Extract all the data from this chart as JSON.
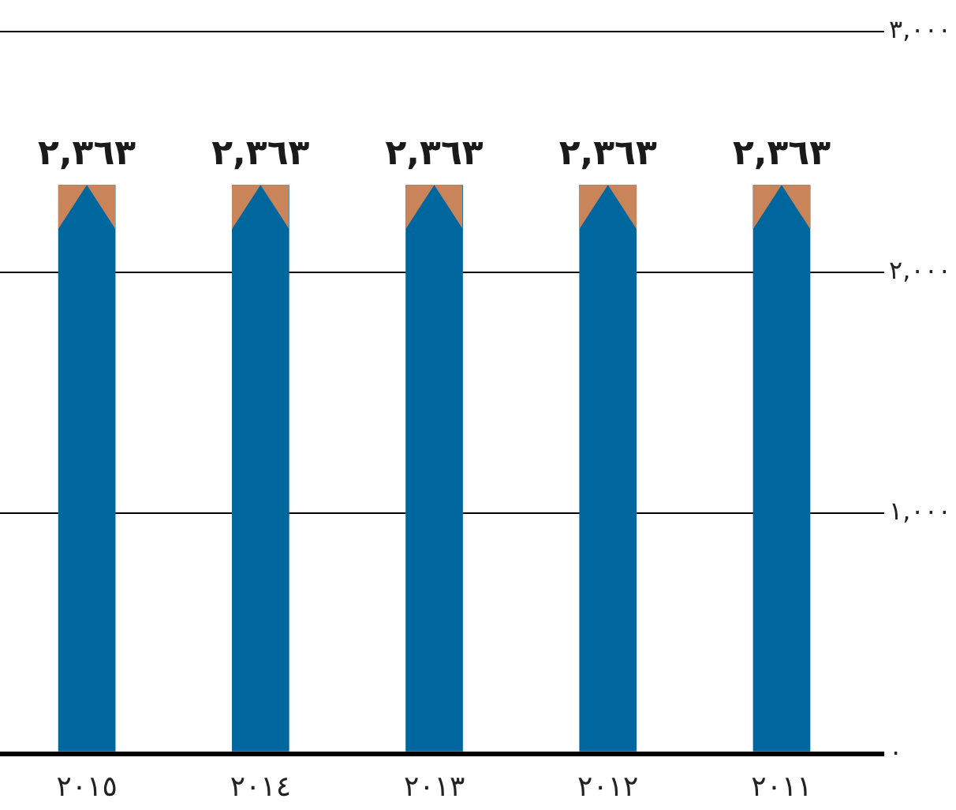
{
  "chart_data": {
    "type": "bar",
    "categories": [
      "٢٠١٥",
      "٢٠١٤",
      "٢٠١٣",
      "٢٠١٢",
      "٢٠١١"
    ],
    "values": [
      2363,
      2363,
      2363,
      2363,
      2363
    ],
    "value_labels": [
      "٢,٣٦٣",
      "٢,٣٦٣",
      "٢,٣٦٣",
      "٢,٣٦٣",
      "٢,٣٦٣"
    ],
    "color": "#00669e",
    "ylim": [
      0,
      3000
    ],
    "yticks": [
      {
        "value": 0,
        "label": "٠"
      },
      {
        "value": 1000,
        "label": "١,٠٠٠"
      },
      {
        "value": 2000,
        "label": "٢,٠٠٠"
      },
      {
        "value": 3000,
        "label": "٣,٠٠٠"
      }
    ],
    "grid": "y",
    "legend": false
  }
}
